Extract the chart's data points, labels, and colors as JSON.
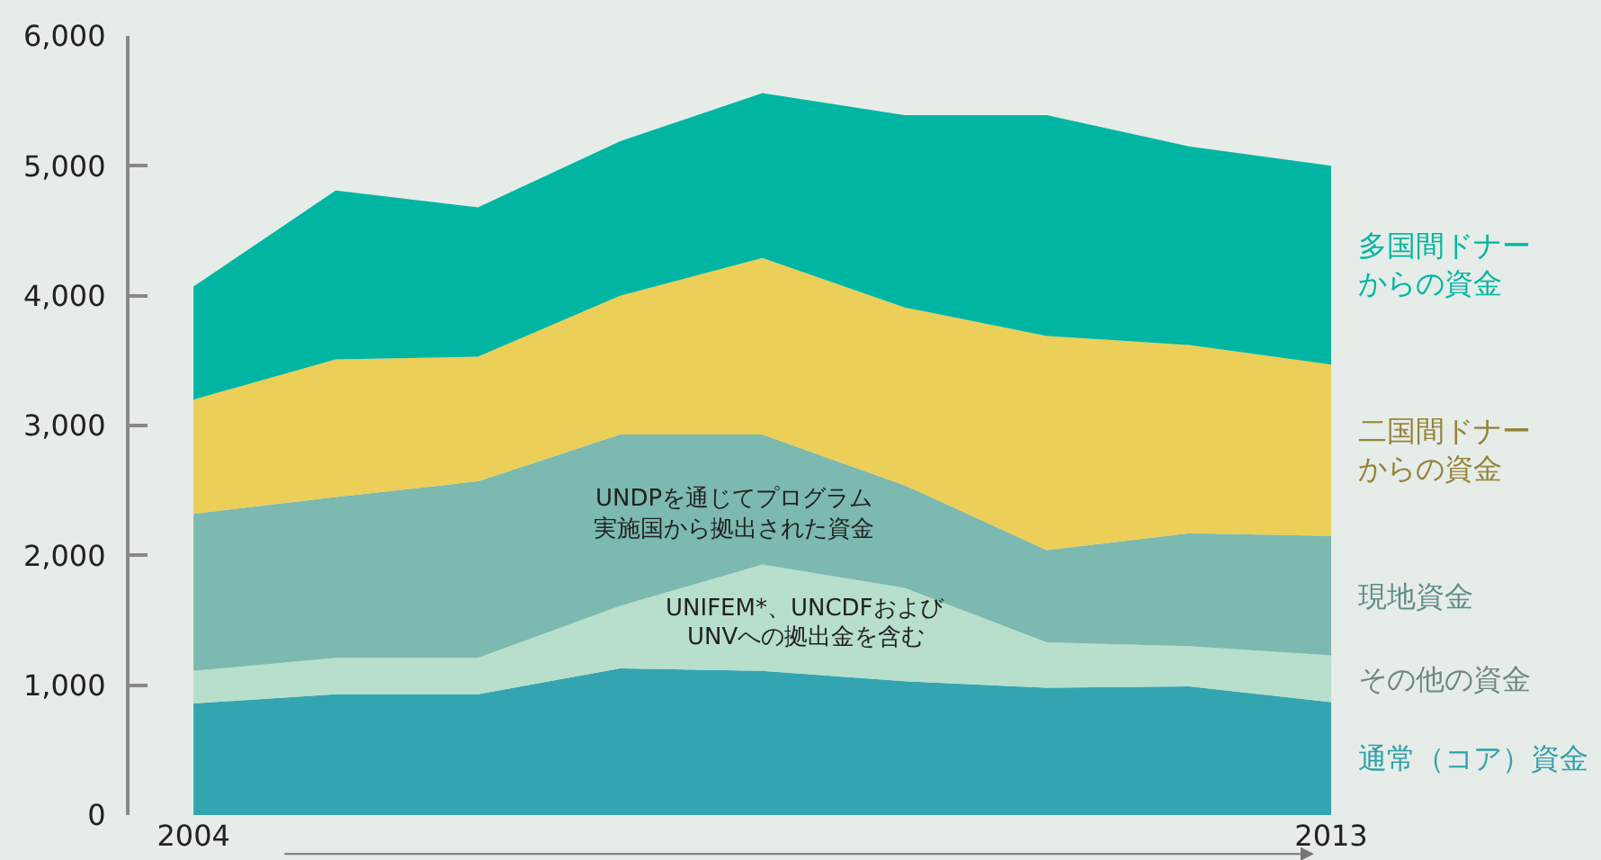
{
  "chart_data": {
    "type": "area",
    "stacked": true,
    "categories": [
      "2004",
      null,
      null,
      null,
      null,
      null,
      null,
      null,
      "2013"
    ],
    "series": [
      {
        "name": "通常（コア）資金",
        "color": "#33a5b0",
        "values": [
          860,
          930,
          930,
          1130,
          1110,
          1030,
          980,
          990,
          870
        ]
      },
      {
        "name": "その他の資金",
        "color": "#b7dfcb",
        "values": [
          250,
          280,
          280,
          480,
          820,
          720,
          350,
          310,
          360
        ]
      },
      {
        "name": "現地資金",
        "color": "#7cb9b0",
        "values": [
          1210,
          1240,
          1360,
          1320,
          1000,
          790,
          710,
          870,
          920
        ]
      },
      {
        "name": "二国間ドナーからの資金",
        "color": "#ebcf58",
        "values": [
          880,
          1060,
          960,
          1070,
          1360,
          1370,
          1650,
          1450,
          1320
        ]
      },
      {
        "name": "多国間ドナーからの資金",
        "color": "#00b6a2",
        "values": [
          870,
          1300,
          1150,
          1190,
          1270,
          1480,
          1700,
          1530,
          1530
        ]
      }
    ],
    "ylim": [
      0,
      6000
    ],
    "yticks": [
      {
        "value": 0,
        "label": "0"
      },
      {
        "value": 1000,
        "label": "1,000"
      },
      {
        "value": 2000,
        "label": "2,000"
      },
      {
        "value": 3000,
        "label": "3,000"
      },
      {
        "value": 4000,
        "label": "4,000"
      },
      {
        "value": 5000,
        "label": "5,000"
      },
      {
        "value": 6000,
        "label": "6,000"
      }
    ],
    "annotations": [
      "UNDPを通じてプログラム",
      "実施国から拠出された資金",
      "UNIFEM*、UNCDFおよび",
      "UNVへの拠出金を含む"
    ]
  }
}
